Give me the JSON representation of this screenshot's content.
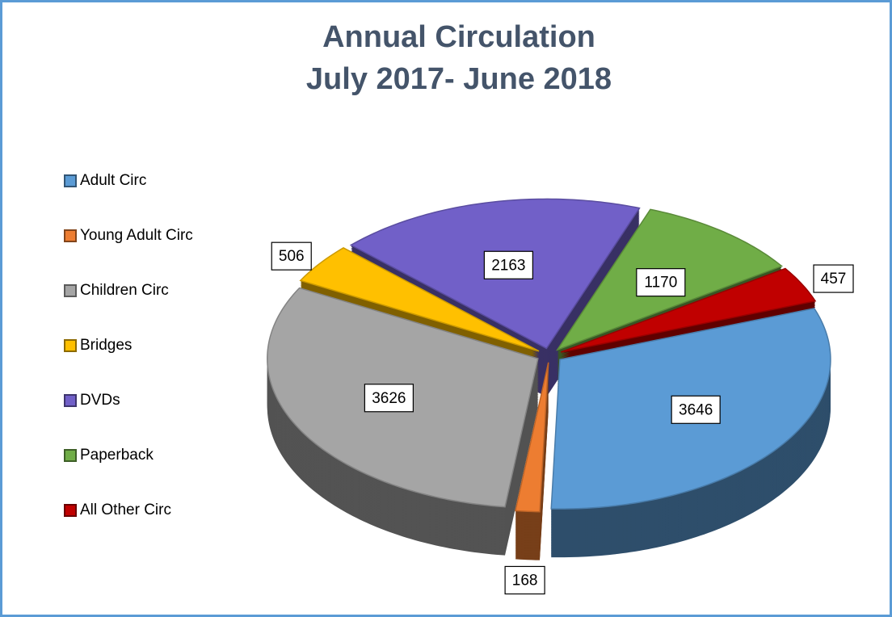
{
  "chart_data": {
    "type": "pie",
    "title": [
      "Annual Circulation",
      "July 2017- June 2018"
    ],
    "categories": [
      "Adult Circ",
      "Young Adult Circ",
      "Children Circ",
      "Bridges",
      "DVDs",
      "Paperback",
      "All Other Circ"
    ],
    "values": [
      3646,
      168,
      3626,
      506,
      2163,
      1170,
      457
    ],
    "colors": [
      "#5b9bd5",
      "#ed7d31",
      "#a5a5a5",
      "#ffc000",
      "#7160c8",
      "#70ad47",
      "#c00000"
    ],
    "legend": "left"
  }
}
